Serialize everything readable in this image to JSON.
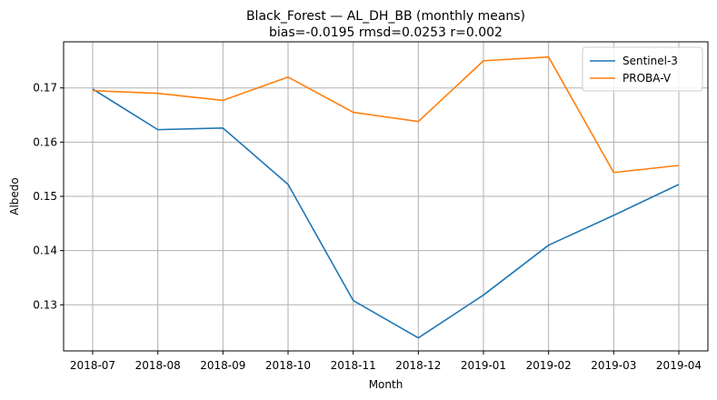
{
  "chart_data": {
    "type": "line",
    "title": "Black_Forest — AL_DH_BB (monthly means)",
    "subtitle": "bias=-0.0195  rmsd=0.0253  r=0.002",
    "xlabel": "Month",
    "ylabel": "Albedo",
    "categories": [
      "2018-07",
      "2018-08",
      "2018-09",
      "2018-10",
      "2018-11",
      "2018-12",
      "2019-01",
      "2019-02",
      "2019-03",
      "2019-04"
    ],
    "series": [
      {
        "name": "Sentinel-3",
        "color": "#1f77b4",
        "values": [
          0.1698,
          0.1623,
          0.1626,
          0.1522,
          0.1308,
          0.1239,
          0.1318,
          0.141,
          0.1465,
          0.1522
        ]
      },
      {
        "name": "PROBA-V",
        "color": "#ff7f0e",
        "values": [
          0.1695,
          0.169,
          0.1677,
          0.172,
          0.1655,
          0.1638,
          0.175,
          0.1757,
          0.1544,
          0.1557
        ]
      }
    ],
    "ylim": [
      0.1215,
      0.1785
    ],
    "yticks": [
      0.13,
      0.14,
      0.15,
      0.16,
      0.17
    ],
    "ytick_labels": [
      "0.13",
      "0.14",
      "0.15",
      "0.16",
      "0.17"
    ],
    "grid": true,
    "legend_position": "top-right"
  }
}
